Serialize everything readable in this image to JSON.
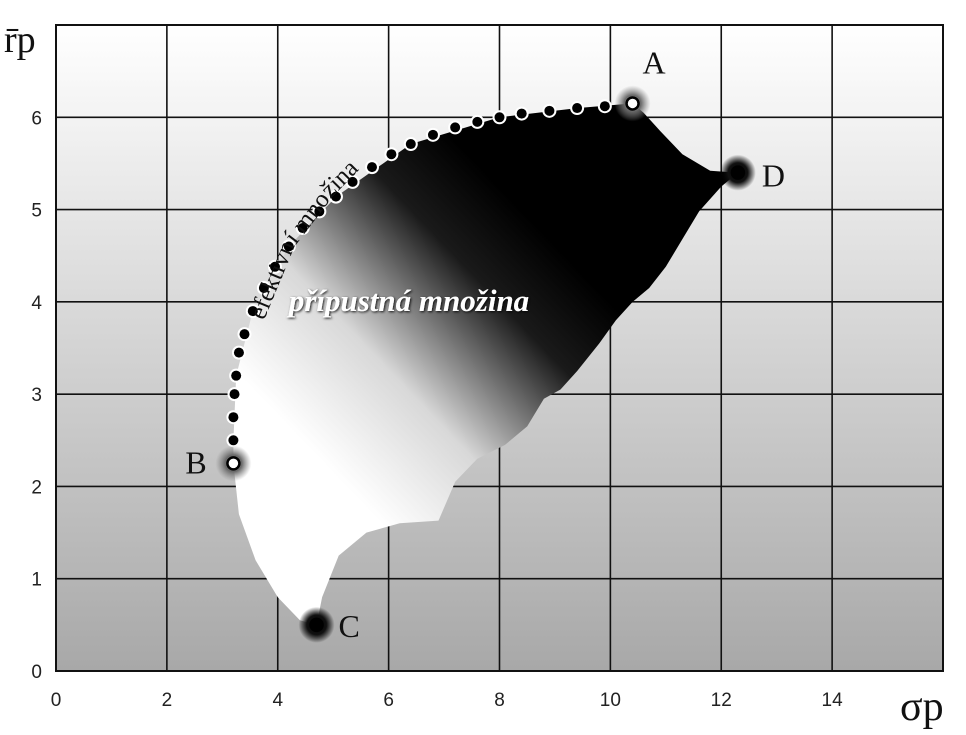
{
  "chart_data": {
    "type": "scatter",
    "xlabel": "σp",
    "ylabel": "r̄p",
    "xlim": [
      0,
      16
    ],
    "ylim": [
      0,
      7
    ],
    "x_ticks": [
      "0",
      "2",
      "4",
      "6",
      "8",
      "10",
      "12",
      "14"
    ],
    "y_ticks": [
      "0",
      "1",
      "2",
      "3",
      "4",
      "5",
      "6"
    ],
    "grid": true,
    "points": [
      {
        "label": "A",
        "x": 10.4,
        "y": 6.15
      },
      {
        "label": "B",
        "x": 3.2,
        "y": 2.25
      },
      {
        "label": "C",
        "x": 4.7,
        "y": 0.5
      },
      {
        "label": "D",
        "x": 12.3,
        "y": 5.4
      }
    ],
    "efficient_frontier": {
      "label": "efektivní množina",
      "points": [
        [
          3.2,
          2.5
        ],
        [
          3.2,
          2.75
        ],
        [
          3.22,
          3.0
        ],
        [
          3.25,
          3.2
        ],
        [
          3.3,
          3.45
        ],
        [
          3.4,
          3.65
        ],
        [
          3.55,
          3.9
        ],
        [
          3.75,
          4.15
        ],
        [
          3.95,
          4.38
        ],
        [
          4.2,
          4.6
        ],
        [
          4.45,
          4.8
        ],
        [
          4.75,
          4.98
        ],
        [
          5.05,
          5.14
        ],
        [
          5.35,
          5.3
        ],
        [
          5.7,
          5.46
        ],
        [
          6.05,
          5.6
        ],
        [
          6.4,
          5.71
        ],
        [
          6.8,
          5.81
        ],
        [
          7.2,
          5.89
        ],
        [
          7.6,
          5.95
        ],
        [
          8.0,
          6.0
        ],
        [
          8.4,
          6.04
        ],
        [
          8.9,
          6.07
        ],
        [
          9.4,
          6.1
        ],
        [
          9.9,
          6.12
        ]
      ]
    },
    "feasible_region": {
      "label": "přípustná množina",
      "boundary": [
        [
          3.2,
          2.25
        ],
        [
          3.3,
          1.7
        ],
        [
          3.6,
          1.2
        ],
        [
          4.0,
          0.8
        ],
        [
          4.4,
          0.55
        ],
        [
          4.7,
          0.5
        ],
        [
          4.8,
          0.8
        ],
        [
          5.1,
          1.25
        ],
        [
          5.6,
          1.5
        ],
        [
          6.2,
          1.6
        ],
        [
          6.9,
          1.63
        ],
        [
          7.2,
          2.05
        ],
        [
          7.6,
          2.3
        ],
        [
          8.1,
          2.45
        ],
        [
          8.5,
          2.65
        ],
        [
          8.8,
          2.95
        ],
        [
          9.1,
          3.05
        ],
        [
          9.4,
          3.25
        ],
        [
          9.8,
          3.55
        ],
        [
          10.1,
          3.8
        ],
        [
          10.4,
          4.0
        ],
        [
          10.7,
          4.15
        ],
        [
          11.0,
          4.38
        ],
        [
          11.3,
          4.68
        ],
        [
          11.6,
          4.98
        ],
        [
          12.0,
          5.25
        ],
        [
          12.3,
          5.4
        ],
        [
          11.8,
          5.42
        ],
        [
          11.3,
          5.6
        ],
        [
          10.9,
          5.85
        ],
        [
          10.6,
          6.05
        ],
        [
          10.4,
          6.15
        ],
        [
          9.4,
          6.1
        ],
        [
          8.0,
          6.0
        ],
        [
          6.4,
          5.71
        ],
        [
          5.05,
          5.14
        ],
        [
          4.2,
          4.6
        ],
        [
          3.55,
          3.9
        ],
        [
          3.25,
          3.2
        ],
        [
          3.2,
          2.5
        ]
      ]
    }
  }
}
